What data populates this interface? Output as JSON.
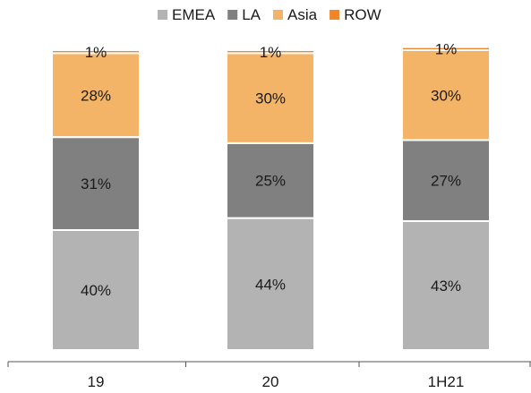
{
  "chart_data": {
    "type": "bar",
    "stacked": true,
    "percent": true,
    "categories": [
      "19",
      "20",
      "1H21"
    ],
    "series": [
      {
        "name": "EMEA",
        "color": "#b3b3b3",
        "values": [
          40,
          44,
          43
        ],
        "labels": [
          "40%",
          "44%",
          "43%"
        ]
      },
      {
        "name": "LA",
        "color": "#808080",
        "values": [
          31,
          25,
          27
        ],
        "labels": [
          "31%",
          "25%",
          "27%"
        ]
      },
      {
        "name": "Asia",
        "color": "#f3b467",
        "values": [
          28,
          30,
          30
        ],
        "labels": [
          "28%",
          "30%",
          "30%"
        ]
      },
      {
        "name": "ROW",
        "color": "#f0862a",
        "values": [
          1,
          1,
          1
        ],
        "labels": [
          "1%",
          "1%",
          "1%"
        ]
      }
    ],
    "ylim": [
      0,
      100
    ],
    "legend_position": "top-center",
    "grid": false,
    "title": "",
    "xlabel": "",
    "ylabel": ""
  }
}
